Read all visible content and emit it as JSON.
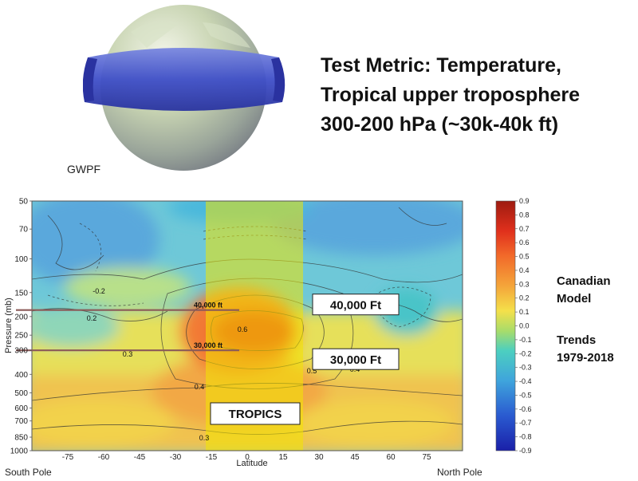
{
  "header": {
    "credit": "GWPF",
    "title_lines": [
      "Test Metric: Temperature,",
      "Tropical upper troposphere",
      "300-200 hPa (~30k-40k ft)"
    ]
  },
  "side_labels": {
    "model_lines": [
      "Canadian",
      "Model"
    ],
    "trend_lines": [
      "Trends",
      "1979-2018"
    ]
  },
  "colors": {
    "tropics_band": "#f2e600",
    "reference_line": "#8b5a58"
  },
  "chart_data": {
    "type": "heatmap",
    "xlabel": "Latitude",
    "ylabel": "Pressure (mb)",
    "x_ticks": [
      -75,
      -60,
      -45,
      -30,
      -15,
      0,
      15,
      30,
      45,
      60,
      75
    ],
    "y_ticks": [
      50,
      70,
      100,
      150,
      200,
      250,
      300,
      400,
      500,
      600,
      700,
      850,
      1000
    ],
    "xlim": [
      -90,
      90
    ],
    "ylim": [
      1000,
      50
    ],
    "y_scale": "log",
    "colorbar": {
      "ticks": [
        0.9,
        0.8,
        0.7,
        0.6,
        0.5,
        0.4,
        0.3,
        0.2,
        0.1,
        0.0,
        -0.1,
        -0.2,
        -0.3,
        -0.4,
        -0.5,
        -0.6,
        -0.7,
        -0.8,
        -0.9
      ]
    },
    "contour_labels": [
      "0.6",
      "0.5",
      "0.4",
      "0.3",
      "0.2",
      "-0.2",
      "0.3",
      "0.4"
    ],
    "tropics_band": {
      "lat_range": [
        -20,
        20
      ],
      "label": "TROPICS"
    },
    "reference_levels": [
      {
        "name": "40,000 ft",
        "callout": "40,000 Ft",
        "pressure": 185
      },
      {
        "name": "30,000 ft",
        "callout": "30,000 Ft",
        "pressure": 300
      }
    ],
    "x_end_labels": {
      "left": "South Pole",
      "right": "North Pole"
    }
  }
}
